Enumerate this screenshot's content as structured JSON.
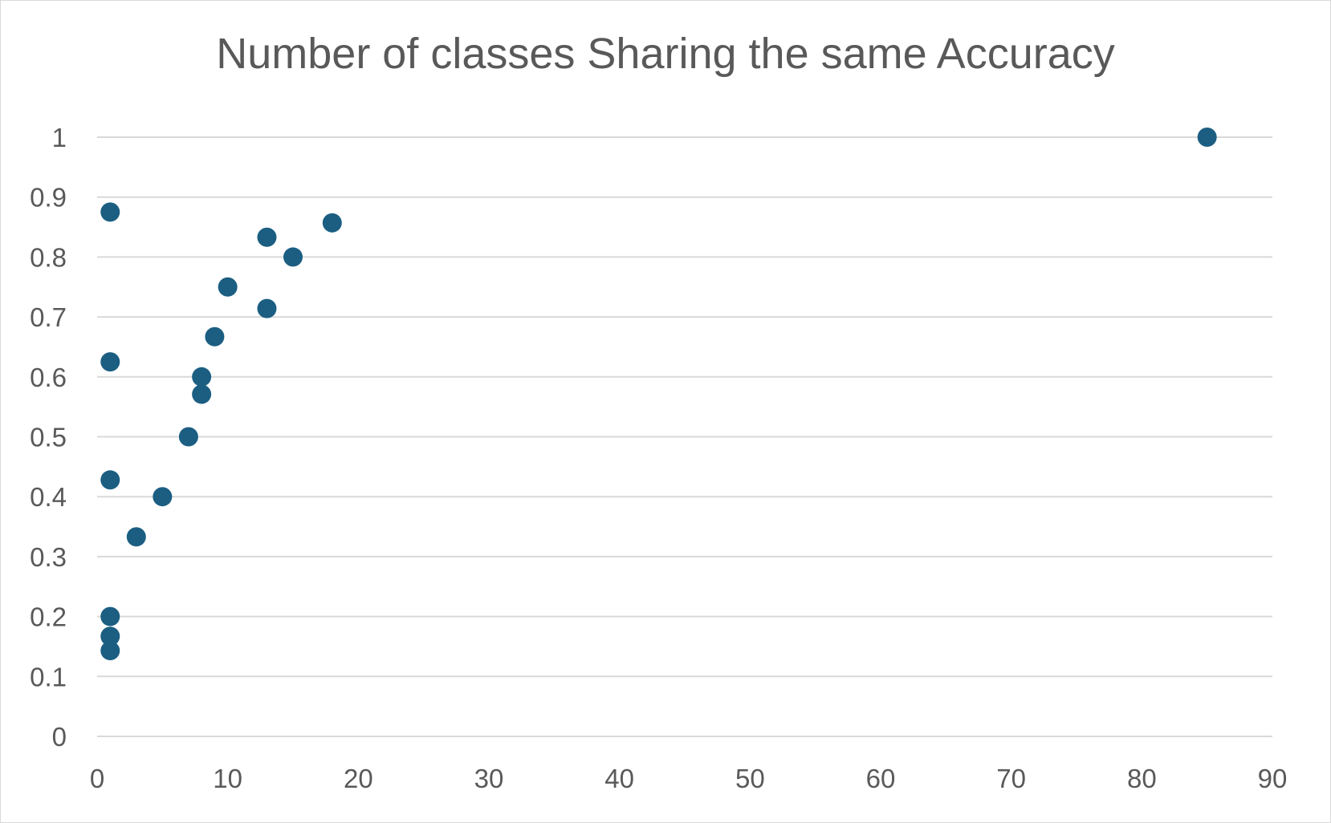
{
  "chart_data": {
    "type": "scatter",
    "title": "Number of classes Sharing the same Accuracy",
    "xlabel": "",
    "ylabel": "",
    "xlim": [
      0,
      90
    ],
    "ylim": [
      0,
      1
    ],
    "x_ticks": [
      "0",
      "10",
      "20",
      "30",
      "40",
      "50",
      "60",
      "70",
      "80",
      "90"
    ],
    "y_ticks": [
      "0",
      "0.1",
      "0.2",
      "0.3",
      "0.4",
      "0.5",
      "0.6",
      "0.7",
      "0.8",
      "0.9",
      "1"
    ],
    "grid": "horizontal",
    "legend": "none",
    "marker_color": "#1b5e82",
    "points": [
      {
        "x": 1,
        "y": 0.875
      },
      {
        "x": 1,
        "y": 0.625
      },
      {
        "x": 1,
        "y": 0.428
      },
      {
        "x": 1,
        "y": 0.2
      },
      {
        "x": 1,
        "y": 0.167
      },
      {
        "x": 1,
        "y": 0.143
      },
      {
        "x": 3,
        "y": 0.333
      },
      {
        "x": 5,
        "y": 0.4
      },
      {
        "x": 7,
        "y": 0.5
      },
      {
        "x": 8,
        "y": 0.6
      },
      {
        "x": 8,
        "y": 0.571
      },
      {
        "x": 9,
        "y": 0.667
      },
      {
        "x": 10,
        "y": 0.75
      },
      {
        "x": 13,
        "y": 0.833
      },
      {
        "x": 13,
        "y": 0.714
      },
      {
        "x": 15,
        "y": 0.8
      },
      {
        "x": 18,
        "y": 0.857
      },
      {
        "x": 85,
        "y": 1.0
      }
    ]
  }
}
